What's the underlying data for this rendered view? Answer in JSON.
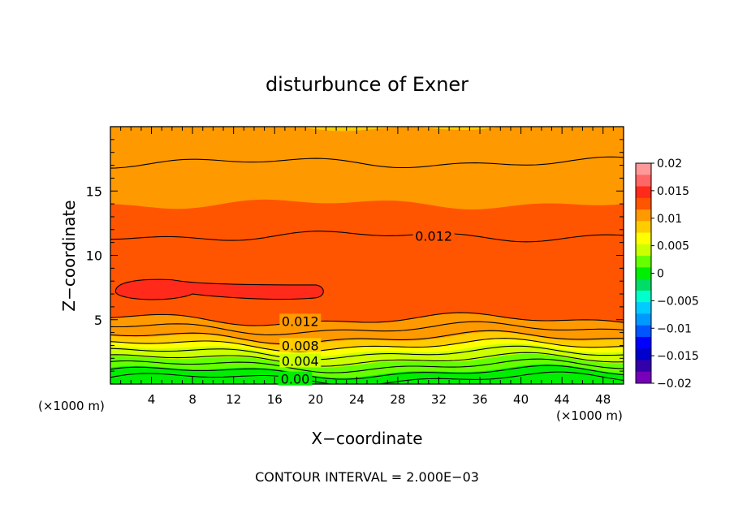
{
  "chart_data": {
    "type": "heatmap",
    "title": "disturbunce of Exner",
    "xlabel": "X−coordinate",
    "ylabel": "Z−coordinate",
    "x_unit": "(×1000 m)",
    "y_unit": "(×1000 m)",
    "xlim": [
      0,
      50
    ],
    "ylim": [
      0,
      20
    ],
    "x_ticks": [
      4,
      8,
      12,
      16,
      20,
      24,
      28,
      32,
      36,
      40,
      44,
      48
    ],
    "y_ticks": [
      5,
      10,
      15
    ],
    "footnote": "CONTOUR INTERVAL = 2.000E−03",
    "contour_interval": 0.002,
    "colorbar": {
      "min": -0.02,
      "max": 0.02,
      "tick_values": [
        0.02,
        0.015,
        0.01,
        0.005,
        0,
        -0.005,
        -0.01,
        -0.015,
        -0.02
      ],
      "tick_labels": [
        "0.02",
        "0.015",
        "0.01",
        "0.005",
        "0",
        "−0.005",
        "−0.01",
        "−0.015",
        "−0.02"
      ],
      "colors": [
        "#ff9999",
        "#ff6666",
        "#ff2a1a",
        "#ff5500",
        "#ff9900",
        "#ffcc00",
        "#ffff00",
        "#ccff00",
        "#66ff00",
        "#00ee00",
        "#00dd66",
        "#00ffcc",
        "#00ccff",
        "#0099ff",
        "#0055ff",
        "#0000ff",
        "#0000cc",
        "#3300aa",
        "#7700bb"
      ]
    },
    "contour_labels": [
      {
        "text": "0.012",
        "x": 31.5,
        "y": 11.5
      },
      {
        "text": "0.012",
        "x": 18.5,
        "y": 4.9
      },
      {
        "text": "0.008",
        "x": 18.5,
        "y": 3.0
      },
      {
        "text": "0.004",
        "x": 18.5,
        "y": 1.8
      },
      {
        "text": "0.00",
        "x": 18.0,
        "y": 0.4
      }
    ],
    "field": [
      {
        "z": 0.2,
        "value": 0.0
      },
      {
        "z": 0.6,
        "value": 0.001
      },
      {
        "z": 1.0,
        "value": 0.002
      },
      {
        "z": 1.4,
        "value": 0.003
      },
      {
        "z": 1.8,
        "value": 0.004
      },
      {
        "z": 2.2,
        "value": 0.005
      },
      {
        "z": 2.6,
        "value": 0.006
      },
      {
        "z": 3.0,
        "value": 0.008
      },
      {
        "z": 3.5,
        "value": 0.01
      },
      {
        "z": 4.2,
        "value": 0.011
      },
      {
        "z": 5.0,
        "value": 0.012
      },
      {
        "z": 6.0,
        "value": 0.013
      },
      {
        "z": 7.0,
        "value": 0.0135
      },
      {
        "z": 9.0,
        "value": 0.013
      },
      {
        "z": 11.5,
        "value": 0.012
      },
      {
        "z": 14.0,
        "value": 0.011
      },
      {
        "z": 17.0,
        "value": 0.01
      },
      {
        "z": 20.0,
        "value": 0.009
      }
    ],
    "local_max": {
      "x_range": [
        0.5,
        21
      ],
      "z_center": 7.2,
      "value": 0.014
    }
  }
}
